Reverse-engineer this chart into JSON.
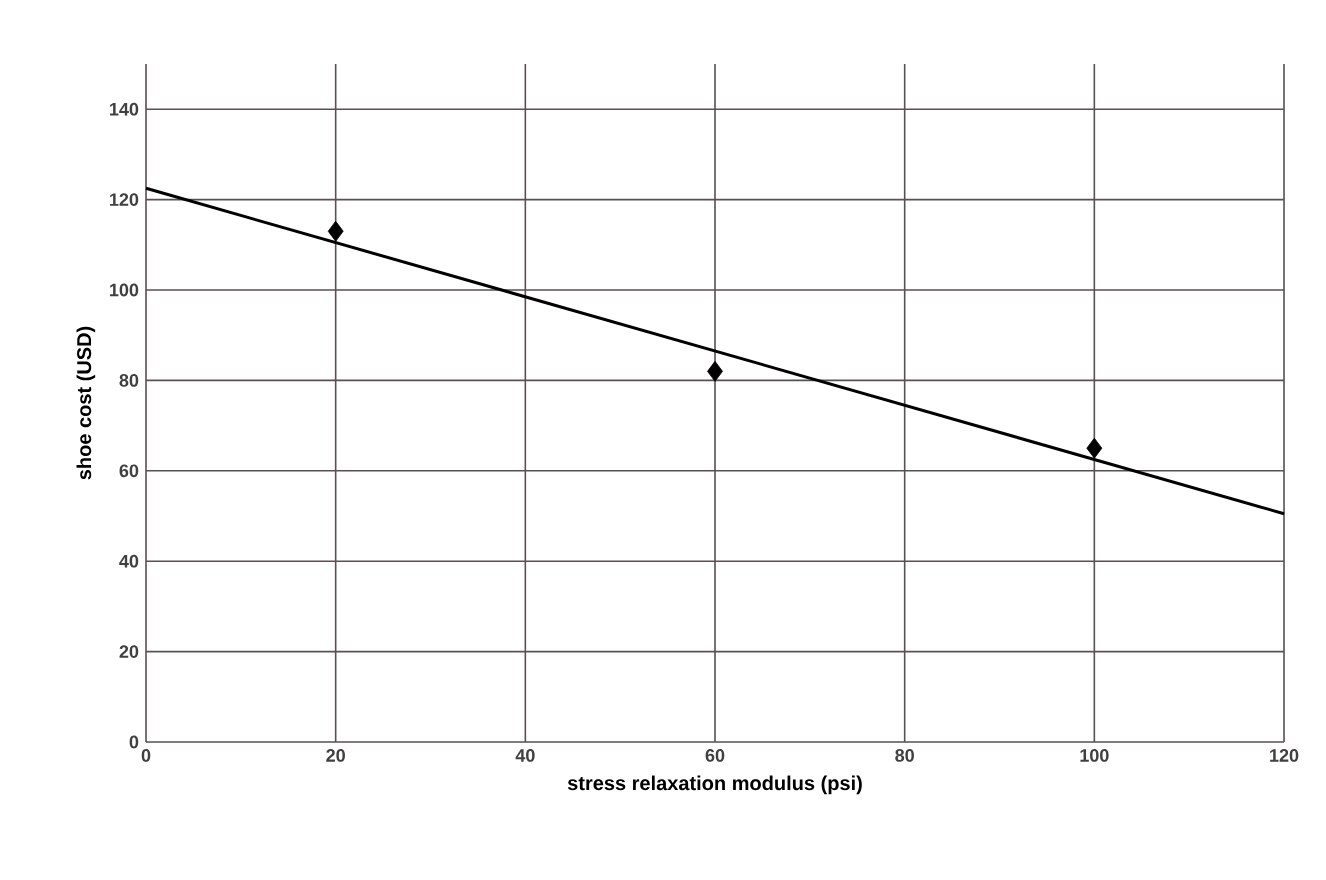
{
  "chart_data": {
    "type": "scatter",
    "xlabel": "stress relaxation modulus (psi)",
    "ylabel": "shoe cost (USD)",
    "xlim": [
      0,
      120
    ],
    "ylim": [
      0,
      150
    ],
    "xticks": [
      0,
      20,
      40,
      60,
      80,
      100,
      120
    ],
    "yticks": [
      0,
      20,
      40,
      60,
      80,
      100,
      120,
      140
    ],
    "grid": true,
    "series": [
      {
        "x": [
          20,
          60,
          100
        ],
        "values": [
          113,
          82,
          65
        ],
        "color": "#000000",
        "marker": "diamond"
      },
      {
        "type": "line",
        "x": [
          0,
          120
        ],
        "values": [
          122.5,
          50.5
        ],
        "color": "#000000",
        "marker": "none",
        "line_style": "solid"
      }
    ]
  }
}
